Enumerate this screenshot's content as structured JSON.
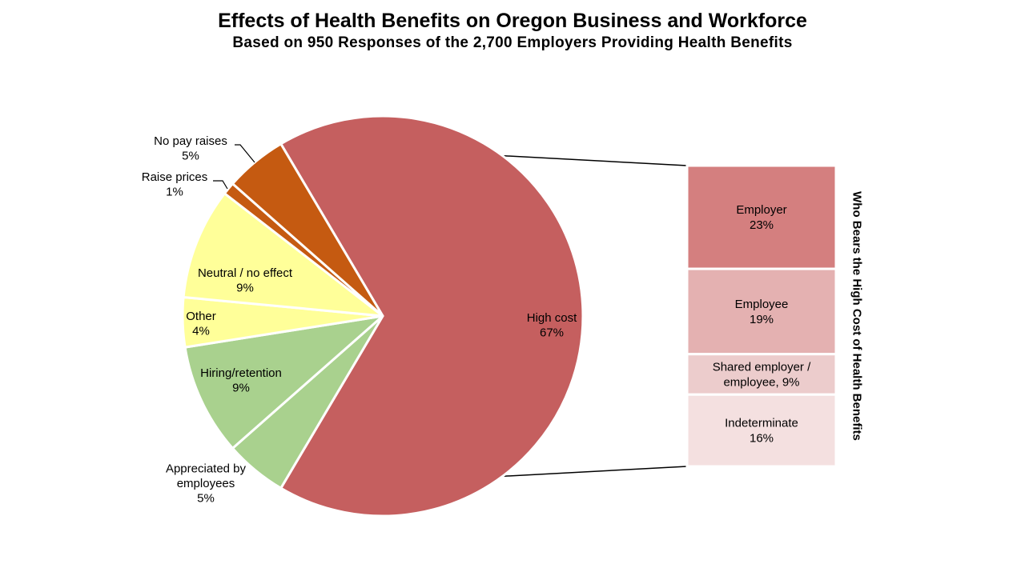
{
  "chart_data": {
    "type": "bar-of-pie",
    "title": "Effects of Health Benefits on Oregon Business and Workforce",
    "subtitle": "Based on 950 Responses of the 2,700 Employers Providing Health Benefits",
    "pie": {
      "slices": [
        {
          "name": "high-cost",
          "label": "High cost",
          "value_label": "67%",
          "value": 67,
          "color": "#c55f5f"
        },
        {
          "name": "appreciated",
          "label": "Appreciated by employees",
          "label_lines": [
            "Appreciated by",
            "employees"
          ],
          "value_label": "5%",
          "value": 5,
          "color": "#a9d18e"
        },
        {
          "name": "hiring",
          "label": "Hiring/retention",
          "value_label": "9%",
          "value": 9,
          "color": "#a9d18e"
        },
        {
          "name": "other",
          "label": "Other",
          "value_label": "4%",
          "value": 4,
          "color": "#ffff99"
        },
        {
          "name": "neutral",
          "label": "Neutral / no effect",
          "value_label": "9%",
          "value": 9,
          "color": "#ffff99"
        },
        {
          "name": "raise-prices",
          "label": "Raise prices",
          "value_label": "1%",
          "value": 1,
          "color": "#c55a11"
        },
        {
          "name": "no-pay-raises",
          "label": "No pay raises",
          "value_label": "5%",
          "value": 5,
          "color": "#c55a11"
        }
      ]
    },
    "breakdown": {
      "title": "Who Bears the High Cost of Health Benefits",
      "parent": "High cost",
      "segments": [
        {
          "name": "employer",
          "lines": [
            "Employer",
            "23%"
          ],
          "label": "Employer",
          "value": 23,
          "color": "#d47f7f"
        },
        {
          "name": "employee",
          "lines": [
            "Employee",
            "19%"
          ],
          "label": "Employee",
          "value": 19,
          "color": "#e4b1b1"
        },
        {
          "name": "shared",
          "lines": [
            "Shared employer /",
            "employee, 9%"
          ],
          "label": "Shared employer / employee",
          "value": 9,
          "color": "#eccccc"
        },
        {
          "name": "indeterminate",
          "lines": [
            "Indeterminate",
            "16%"
          ],
          "label": "Indeterminate",
          "value": 16,
          "color": "#f4e0e0"
        }
      ]
    }
  }
}
